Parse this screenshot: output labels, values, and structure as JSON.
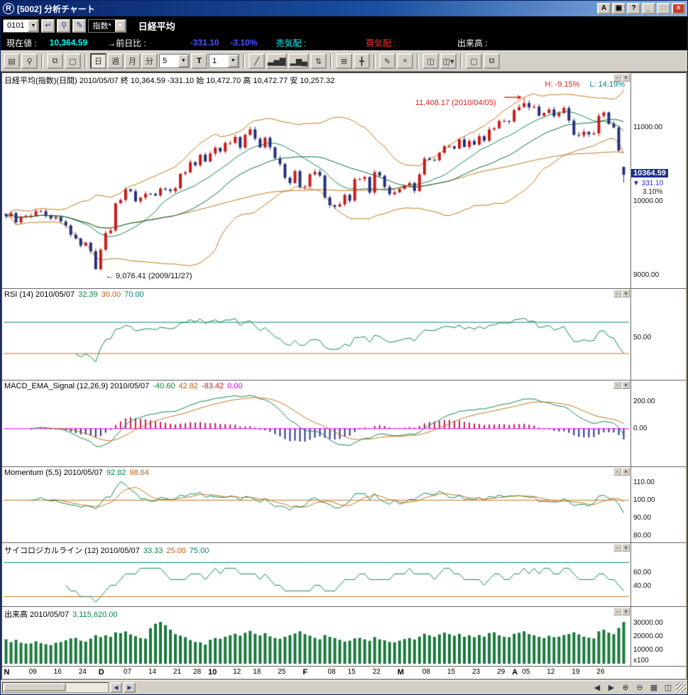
{
  "window": {
    "title": "[5002] 分析チャート",
    "logo_letter": "R",
    "buttons": [
      {
        "name": "font-size-button",
        "label": "A"
      },
      {
        "name": "screen-capture-button",
        "label": "▣"
      },
      {
        "name": "help-button",
        "label": "?"
      },
      {
        "name": "minimize-button",
        "label": "_"
      },
      {
        "name": "maximize-button",
        "label": "□",
        "disabled": true
      },
      {
        "name": "close-button",
        "label": "×",
        "close": true
      }
    ]
  },
  "toolbar1": {
    "code_value": "0101",
    "enter_glyph": "↵",
    "zoom_glyph": "⚲",
    "draw_glyph": "✎",
    "index_select": "指数*",
    "symbol_name": "日経平均",
    "dropdown_arrow": "▼"
  },
  "quote_bar": {
    "current_label": "現在値 :",
    "current_value": "10,364.59",
    "change_label": "→前日比 :",
    "change_value": "-331.10",
    "change_pct": "-3.10%",
    "ask_label": "売気配 :",
    "bid_label": "買気配 :",
    "volume_label": "出来高 :"
  },
  "toolbar2": {
    "icons_left": [
      {
        "name": "print-icon",
        "glyph": "▤"
      },
      {
        "name": "zoom-search-icon",
        "glyph": "⚲"
      },
      {
        "name": "copy-chart-icon",
        "glyph": "⧉",
        "gap_before": true
      },
      {
        "name": "new-chart-icon",
        "glyph": "▢"
      }
    ],
    "period_buttons": [
      {
        "name": "period-day-button",
        "label": "日",
        "active": true
      },
      {
        "name": "period-week-button",
        "label": "週"
      },
      {
        "name": "period-month-button",
        "label": "月"
      },
      {
        "name": "period-minute-button",
        "label": "分"
      }
    ],
    "interval_value": "5",
    "tick_button": "T",
    "count_value": "1",
    "icons_right": [
      {
        "name": "trendline-icon",
        "glyph": "╱",
        "gap_before": true
      },
      {
        "name": "bar-chart-icon",
        "glyph": "▃▅▇"
      },
      {
        "name": "compare-chart-icon",
        "glyph": "▂▆▄"
      },
      {
        "name": "candle-style-icon",
        "glyph": "⇅"
      },
      {
        "name": "grid-icon",
        "glyph": "⊞",
        "gap_before": true
      },
      {
        "name": "crosshair-icon",
        "glyph": "╋"
      },
      {
        "name": "draw-icon",
        "glyph": "✎",
        "gap_before": true
      },
      {
        "name": "erase-icon",
        "glyph": "×"
      },
      {
        "name": "window-layout-icon",
        "glyph": "◫",
        "gap_before": true
      },
      {
        "name": "window-menu-icon",
        "glyph": "◫▾"
      },
      {
        "name": "page-icon",
        "glyph": "▢",
        "gap_before": true
      },
      {
        "name": "page-copy-icon",
        "glyph": "⧉"
      }
    ]
  },
  "panel_controls": {
    "minimize": "-",
    "close": "×"
  },
  "main_chart": {
    "header": "日経平均(指数)(日間) 2010/05/07 終 10,364.59 -331.10 始 10,472.70 高 10,472.77 安 10,257.32",
    "h_label": "H: -9.15%",
    "l_label": "L: 14.19%",
    "peak_annotation": "11,408.17 (2010/04/05)",
    "trough_annotation": "← 9,076.41 (2009/11/27)",
    "price_badge": "10364.59",
    "badge_change": "▼ 331.10",
    "badge_pct": "3.10%"
  },
  "panels": {
    "rsi": {
      "title": "RSI (14) 2010/05/07",
      "v1": "32.39",
      "v2": "30.00",
      "v3": "70.00"
    },
    "macd": {
      "title": "MACD_EMA_Signal (12,26,9) 2010/05/07",
      "v1": "-40.60",
      "v2": "42.82",
      "v3": "-83.42",
      "v4": "0.00"
    },
    "momentum": {
      "title": "Momentum (5,5) 2010/05/07",
      "v1": "92.82",
      "v2": "98.64"
    },
    "psych": {
      "title": "サイコロジカルライン (12) 2010/05/07",
      "v1": "33.33",
      "v2": "25.00",
      "v3": "75.00"
    },
    "volume": {
      "title": "出来高 2010/05/07",
      "v1": "3,115,620.00",
      "unit": "x100"
    }
  },
  "status_bar": {
    "scroll_left": "◀",
    "scroll_right": "▶",
    "icons": [
      {
        "name": "pan-left-icon",
        "glyph": "◀"
      },
      {
        "name": "pan-right-icon",
        "glyph": "▶"
      },
      {
        "name": "zoom-in-icon",
        "glyph": "⊕"
      },
      {
        "name": "zoom-out-icon",
        "glyph": "⊖"
      },
      {
        "name": "grid-toggle-icon",
        "glyph": "▦"
      },
      {
        "name": "layout-icon",
        "glyph": "◫"
      }
    ]
  },
  "chart_data": {
    "type": "candlestick",
    "title": "日経平均 (Nikkei 225) daily chart 2009/11 - 2010/05/07 with RSI, MACD, Momentum, Psychological line and Volume",
    "x_labels": [
      {
        "t": "N",
        "i": 0,
        "b": 1
      },
      {
        "t": "09",
        "i": 5
      },
      {
        "t": "16",
        "i": 10
      },
      {
        "t": "24",
        "i": 15
      },
      {
        "t": "D",
        "i": 19,
        "b": 1
      },
      {
        "t": "07",
        "i": 24
      },
      {
        "t": "14",
        "i": 29
      },
      {
        "t": "21",
        "i": 34
      },
      {
        "t": "28",
        "i": 38
      },
      {
        "t": "10",
        "i": 41,
        "b": 1
      },
      {
        "t": "12",
        "i": 46
      },
      {
        "t": "18",
        "i": 50
      },
      {
        "t": "25",
        "i": 55
      },
      {
        "t": "F",
        "i": 60,
        "b": 1
      },
      {
        "t": "08",
        "i": 65
      },
      {
        "t": "15",
        "i": 69
      },
      {
        "t": "22",
        "i": 74
      },
      {
        "t": "M",
        "i": 79,
        "b": 1
      },
      {
        "t": "08",
        "i": 84
      },
      {
        "t": "15",
        "i": 89
      },
      {
        "t": "23",
        "i": 94
      },
      {
        "t": "29",
        "i": 99
      },
      {
        "t": "A",
        "i": 102,
        "b": 1
      },
      {
        "t": "05",
        "i": 104
      },
      {
        "t": "12",
        "i": 109
      },
      {
        "t": "19",
        "i": 114
      },
      {
        "t": "26",
        "i": 119
      }
    ],
    "closes": [
      9802,
      9844,
      9717,
      9789,
      9808,
      9808,
      9871,
      9871,
      9804,
      9770,
      9791,
      9729,
      9676,
      9549,
      9497,
      9401,
      9441,
      9326,
      9081,
      9346,
      9572,
      9608,
      9977,
      10022,
      10167,
      10141,
      10004,
      10054,
      10107,
      10106,
      10083,
      10177,
      10164,
      10142,
      10183,
      10378,
      10397,
      10536,
      10494,
      10638,
      10546,
      10654,
      10731,
      10681,
      10798,
      10798,
      10879,
      10735,
      10907,
      10982,
      10855,
      10737,
      10868,
      10738,
      10590,
      10512,
      10325,
      10252,
      10414,
      10198,
      10205,
      10371,
      10404,
      10355,
      10057,
      9951,
      9932,
      9963,
      10092,
      10013,
      10306,
      10307,
      10335,
      10123,
      10400,
      10352,
      10199,
      10101,
      10126,
      10172,
      10221,
      10253,
      10145,
      10369,
      10585,
      10567,
      10563,
      10664,
      10751,
      10751,
      10721,
      10846,
      10744,
      10824,
      10774,
      10888,
      10828,
      10979,
      10996,
      11097,
      11097,
      11090,
      11244,
      11286,
      11339,
      11282,
      11292,
      11168,
      11204,
      11252,
      11161,
      11204,
      11273,
      11102,
      10908,
      10900,
      10949,
      10914,
      10928,
      11165,
      11212,
      11057,
      11008,
      10695,
      10364.59
    ],
    "volumes": [
      18234,
      16120,
      17890,
      15670,
      14980,
      15230,
      16780,
      15430,
      14560,
      13980,
      15670,
      16230,
      17450,
      18920,
      19340,
      17230,
      16540,
      18760,
      21340,
      19870,
      21230,
      20110,
      23450,
      22890,
      24120,
      21870,
      20540,
      19230,
      18670,
      26540,
      29870,
      31230,
      28760,
      25430,
      22110,
      20980,
      19870,
      17650,
      16230,
      15980,
      14230,
      17890,
      19230,
      18670,
      20110,
      21230,
      22450,
      20980,
      23120,
      24560,
      22340,
      21120,
      22890,
      20450,
      19230,
      18670,
      20110,
      21340,
      22560,
      24230,
      22110,
      20980,
      19340,
      18230,
      21450,
      20110,
      19230,
      17890,
      16540,
      17230,
      18980,
      19340,
      18230,
      17120,
      19870,
      18230,
      17450,
      16230,
      15980,
      17230,
      18450,
      19230,
      18110,
      20230,
      22340,
      21230,
      20110,
      21890,
      23230,
      22110,
      20890,
      22340,
      20110,
      21230,
      19870,
      21450,
      20230,
      22890,
      23450,
      21230,
      20110,
      19870,
      22340,
      23120,
      24230,
      22110,
      21230,
      20110,
      19230,
      20890,
      19870,
      20230,
      21450,
      22230,
      23450,
      21890,
      20230,
      19450,
      18890,
      24230,
      25450,
      23230,
      22110,
      26780,
      31156
    ],
    "last_ohlc": {
      "open": 10472.7,
      "high": 10472.77,
      "low": 10257.32,
      "close": 10364.59
    },
    "marked_high": {
      "index": 104,
      "value": 11408.17,
      "date": "2010/04/05"
    },
    "marked_low": {
      "index": 18,
      "value": 9076.41,
      "date": "2009/11/27"
    },
    "axes": {
      "price": {
        "range": [
          8900,
          11650
        ],
        "ticks": [
          {
            "v": 11000,
            "label": "11000.00"
          },
          {
            "v": 10000,
            "label": "10000.00"
          },
          {
            "v": 9000,
            "label": "9000.00"
          }
        ]
      },
      "rsi": {
        "range": [
          0,
          100
        ],
        "upper": 70,
        "lower": 30,
        "ticks": [
          {
            "v": 50,
            "label": "50.00"
          }
        ]
      },
      "macd": {
        "range": [
          -260,
          290
        ],
        "ticks": [
          {
            "v": 200,
            "label": "200.00"
          },
          {
            "v": 0,
            "label": "0.00"
          }
        ]
      },
      "momentum": {
        "range": [
          78,
          113
        ],
        "mid": 100,
        "ticks": [
          {
            "v": 110,
            "label": "110.00"
          },
          {
            "v": 100,
            "label": "100.00"
          },
          {
            "v": 90,
            "label": "90.00"
          },
          {
            "v": 80,
            "label": "80.00"
          }
        ]
      },
      "psych": {
        "range": [
          15,
          90
        ],
        "upper": 75,
        "lower": 25,
        "ticks": [
          {
            "v": 60,
            "label": "60.00"
          },
          {
            "v": 40,
            "label": "40.00"
          }
        ]
      },
      "volume": {
        "range": [
          0,
          36000
        ],
        "ticks": [
          {
            "v": 30000,
            "label": "30000.00"
          },
          {
            "v": 20000,
            "label": "20000.00"
          },
          {
            "v": 10000,
            "label": "10000.00"
          }
        ]
      }
    },
    "colors": {
      "up": "#cc1a1a",
      "down": "#27307c",
      "line_green": "#0e8a4c",
      "line_green2": "#0a6b3c",
      "line_orange": "#c4761d",
      "teal": "#008080",
      "magenta": "#ff00ff",
      "hist_pos": "#c02050",
      "hist_neg": "#283090",
      "volume_bar": "#1a7a3c",
      "annotation_red": "#e02020"
    }
  }
}
